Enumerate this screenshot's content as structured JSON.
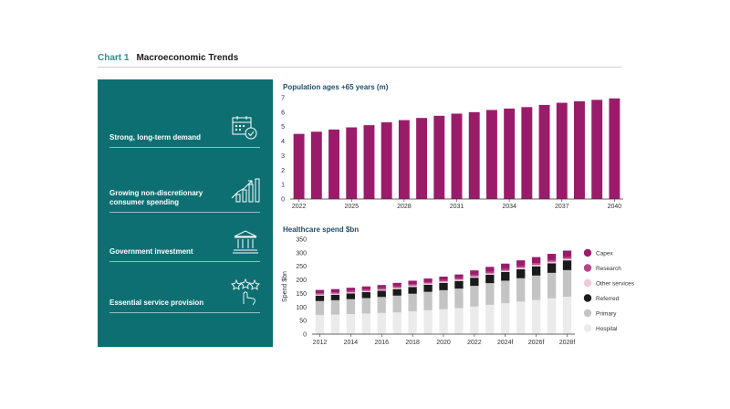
{
  "header": {
    "chart_number": "Chart 1",
    "title": "Macroeconomic Trends"
  },
  "panel": {
    "items": [
      {
        "label": "Strong, long-term demand",
        "icon": "calendar-check-icon"
      },
      {
        "label": "Growing non-discretionary consumer spending",
        "icon": "growth-bars-icon"
      },
      {
        "label": "Government investment",
        "icon": "government-building-icon"
      },
      {
        "label": "Essential service provision",
        "icon": "stars-hand-icon"
      }
    ]
  },
  "colors": {
    "teal_panel": "#0e6f73",
    "accent_teal": "#2f8e8c",
    "magenta": "#9b1b6b",
    "research": "#b0458a",
    "other": "#f0c8dc",
    "referred": "#1a1a1a",
    "primary": "#c4c4c4",
    "hospital": "#ebebeb",
    "title_blue": "#1f4e6b"
  },
  "chart_data": [
    {
      "type": "bar",
      "title": "Population ages +65 years (m)",
      "categories": [
        "2022",
        "2023",
        "2024",
        "2025",
        "2026",
        "2027",
        "2028",
        "2029",
        "2030",
        "2031",
        "2032",
        "2033",
        "2034",
        "2035",
        "2036",
        "2037",
        "2038",
        "2039",
        "2040"
      ],
      "tick_labels": [
        "2022",
        "2025",
        "2028",
        "2031",
        "2034",
        "2037",
        "2040"
      ],
      "values": [
        4.5,
        4.65,
        4.8,
        4.95,
        5.1,
        5.3,
        5.45,
        5.6,
        5.75,
        5.9,
        6.0,
        6.15,
        6.25,
        6.35,
        6.5,
        6.65,
        6.75,
        6.85,
        6.95
      ],
      "ylim": [
        0,
        7
      ],
      "yticks": [
        0,
        1,
        2,
        3,
        4,
        5,
        6,
        7
      ],
      "grid": false
    },
    {
      "type": "bar",
      "stacked": true,
      "title": "Healthcare spend $bn",
      "ylabel": "Spend $bn",
      "categories": [
        "2012",
        "2013",
        "2014",
        "2015",
        "2016",
        "2017",
        "2018",
        "2019",
        "2020",
        "2021",
        "2022",
        "2023",
        "2024f",
        "2025f",
        "2026f",
        "2027f",
        "2028f"
      ],
      "tick_labels": [
        "2012",
        "2014",
        "2016",
        "2018",
        "2020",
        "2022",
        "2024f",
        "2026f",
        "2028f"
      ],
      "ylim": [
        0,
        350
      ],
      "yticks": [
        0,
        50,
        100,
        150,
        200,
        250,
        300,
        350
      ],
      "legend_position": "right",
      "series": [
        {
          "name": "Hospital",
          "values": [
            70,
            72,
            74,
            76,
            78,
            80,
            84,
            88,
            92,
            96,
            102,
            108,
            114,
            120,
            126,
            132,
            138
          ]
        },
        {
          "name": "Primary",
          "values": [
            52,
            53,
            55,
            57,
            59,
            62,
            65,
            68,
            70,
            72,
            76,
            80,
            83,
            86,
            90,
            94,
            98
          ]
        },
        {
          "name": "Referred",
          "values": [
            20,
            20,
            21,
            22,
            23,
            24,
            25,
            26,
            27,
            28,
            30,
            31,
            32,
            33,
            34,
            35,
            36
          ]
        },
        {
          "name": "Other services",
          "values": [
            4,
            4,
            4,
            4,
            4,
            5,
            5,
            5,
            5,
            5,
            5,
            5,
            5,
            6,
            6,
            6,
            6
          ]
        },
        {
          "name": "Research",
          "values": [
            5,
            5,
            5,
            5,
            5,
            5,
            5,
            5,
            5,
            5,
            6,
            6,
            6,
            6,
            6,
            6,
            6
          ]
        },
        {
          "name": "Capex",
          "values": [
            12,
            12,
            12,
            12,
            12,
            13,
            13,
            13,
            13,
            14,
            16,
            18,
            20,
            21,
            22,
            23,
            24
          ]
        }
      ]
    }
  ]
}
